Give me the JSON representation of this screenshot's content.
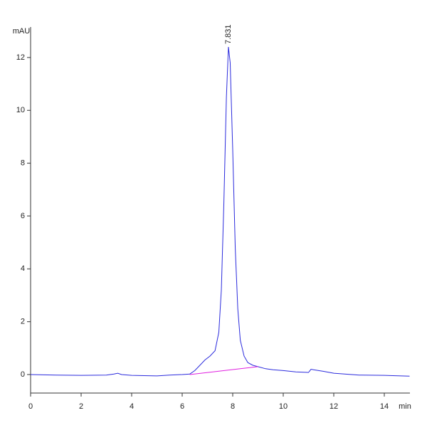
{
  "chart_data": {
    "type": "line",
    "y_label": "mAU",
    "x_label": "min",
    "annotation": "7.831",
    "xlim": [
      0,
      15
    ],
    "ylim": [
      -0.7,
      13.1
    ],
    "xticks": [
      0,
      2,
      4,
      6,
      8,
      10,
      12,
      14
    ],
    "yticks": [
      0,
      2,
      4,
      6,
      8,
      10,
      12
    ],
    "series": [
      {
        "color": "#2b2bdd",
        "x": [
          0,
          1,
          2,
          3,
          3.3,
          3.45,
          3.6,
          4,
          5,
          5.5,
          6,
          6.3,
          6.5,
          6.7,
          6.9,
          7.1,
          7.3,
          7.45,
          7.55,
          7.65,
          7.75,
          7.831,
          7.9,
          8.0,
          8.1,
          8.2,
          8.3,
          8.45,
          8.6,
          8.8,
          9.0,
          9.3,
          9.6,
          10,
          10.5,
          11,
          11.1,
          11.2,
          11.4,
          11.6,
          12,
          13,
          14,
          15
        ],
        "values": [
          0,
          -0.02,
          -0.03,
          -0.02,
          0.02,
          0.05,
          0.0,
          -0.03,
          -0.05,
          -0.02,
          0.0,
          0.02,
          0.15,
          0.35,
          0.55,
          0.7,
          0.9,
          1.6,
          3.2,
          6.5,
          10.5,
          12.4,
          11.8,
          8.5,
          4.8,
          2.5,
          1.3,
          0.7,
          0.45,
          0.35,
          0.3,
          0.22,
          0.18,
          0.15,
          0.1,
          0.08,
          0.2,
          0.18,
          0.15,
          0.12,
          0.05,
          -0.02,
          -0.03,
          -0.06
        ]
      },
      {
        "color": "#e020e0",
        "x": [
          6.3,
          9.0
        ],
        "values": [
          0,
          0.3
        ]
      }
    ]
  }
}
